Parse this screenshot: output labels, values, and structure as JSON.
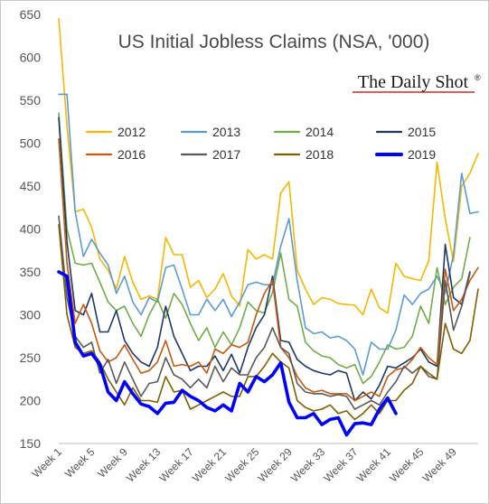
{
  "chart_data": {
    "type": "line",
    "title": "US Initial Jobless Claims (NSA, '000)",
    "source": "The Daily Shot",
    "source_mark": "®",
    "xlabel": "",
    "ylabel": "",
    "ylim": [
      150,
      650
    ],
    "yticks": [
      150,
      200,
      250,
      300,
      350,
      400,
      450,
      500,
      550,
      600,
      650
    ],
    "xlim": [
      1,
      52
    ],
    "xtick_labels": [
      "Week 1",
      "Week 5",
      "Week 9",
      "Week 13",
      "Week 17",
      "Week 21",
      "Week 25",
      "Week 29",
      "Week 33",
      "Week 37",
      "Week 41",
      "Week 45",
      "Week 49"
    ],
    "xtick_positions": [
      1,
      5,
      9,
      13,
      17,
      21,
      25,
      29,
      33,
      37,
      41,
      45,
      49
    ],
    "grid": false,
    "legend": "upper-center, 4 columns",
    "series": [
      {
        "name": "2012",
        "color": "#f5b800",
        "width": 1.6,
        "values": [
          645,
          520,
          420,
          423,
          402,
          365,
          352,
          330,
          368,
          338,
          318,
          322,
          318,
          390,
          370,
          370,
          332,
          340,
          320,
          330,
          348,
          322,
          310,
          376,
          365,
          370,
          365,
          442,
          455,
          352,
          330,
          312,
          320,
          318,
          313,
          312,
          311,
          300,
          330,
          308,
          302,
          360,
          345,
          342,
          340,
          363,
          478,
          412,
          362,
          450,
          465,
          488
        ]
      },
      {
        "name": "2013",
        "color": "#5b9bd5",
        "width": 1.6,
        "values": [
          557,
          557,
          420,
          368,
          388,
          372,
          358,
          325,
          345,
          315,
          300,
          320,
          315,
          355,
          358,
          330,
          300,
          300,
          318,
          305,
          318,
          298,
          315,
          335,
          338,
          335,
          335,
          380,
          412,
          340,
          285,
          278,
          280,
          273,
          275,
          270,
          260,
          230,
          268,
          260,
          260,
          282,
          323,
          312,
          325,
          330,
          345,
          325,
          370,
          465,
          418,
          420
        ]
      },
      {
        "name": "2014",
        "color": "#70ad47",
        "width": 1.6,
        "values": [
          535,
          400,
          360,
          358,
          360,
          338,
          315,
          305,
          310,
          290,
          275,
          300,
          318,
          296,
          325,
          312,
          290,
          270,
          285,
          262,
          280,
          265,
          285,
          315,
          305,
          302,
          326,
          372,
          318,
          310,
          268,
          258,
          252,
          250,
          242,
          238,
          242,
          220,
          228,
          245,
          265,
          260,
          262,
          275,
          310,
          290,
          355,
          312,
          332,
          342,
          390
        ]
      },
      {
        "name": "2015",
        "color": "#1f3864",
        "width": 1.6,
        "values": [
          530,
          385,
          305,
          300,
          325,
          280,
          280,
          305,
          270,
          255,
          245,
          240,
          262,
          310,
          275,
          255,
          235,
          240,
          240,
          252,
          235,
          254,
          232,
          262,
          285,
          300,
          345,
          270,
          268,
          248,
          240,
          235,
          232,
          230,
          235,
          232,
          200,
          210,
          202,
          218,
          240,
          238,
          244,
          250,
          260,
          245,
          240,
          382,
          320,
          312,
          350
        ]
      },
      {
        "name": "2016",
        "color": "#c55a11",
        "width": 1.6,
        "values": [
          505,
          360,
          290,
          312,
          290,
          258,
          245,
          250,
          265,
          248,
          232,
          235,
          245,
          270,
          240,
          242,
          240,
          245,
          232,
          260,
          255,
          265,
          262,
          268,
          300,
          325,
          340,
          262,
          250,
          228,
          215,
          210,
          212,
          208,
          208,
          208,
          200,
          205,
          210,
          205,
          228,
          236,
          238,
          248,
          262,
          250,
          242,
          353,
          305,
          318,
          340,
          355
        ]
      },
      {
        "name": "2017",
        "color": "#595959",
        "width": 1.6,
        "values": [
          415,
          320,
          275,
          262,
          268,
          232,
          248,
          220,
          245,
          225,
          205,
          220,
          222,
          250,
          230,
          225,
          215,
          225,
          215,
          240,
          222,
          238,
          230,
          230,
          250,
          262,
          285,
          262,
          255,
          220,
          210,
          208,
          208,
          205,
          207,
          205,
          190,
          195,
          200,
          195,
          210,
          222,
          240,
          232,
          240,
          228,
          225,
          340,
          282,
          310,
          348
        ]
      },
      {
        "name": "2018",
        "color": "#7f6000",
        "width": 1.6,
        "values": [
          405,
          300,
          262,
          255,
          258,
          245,
          225,
          210,
          195,
          215,
          200,
          200,
          198,
          228,
          210,
          212,
          190,
          195,
          200,
          205,
          210,
          205,
          205,
          228,
          228,
          240,
          255,
          245,
          238,
          200,
          192,
          188,
          190,
          195,
          185,
          188,
          178,
          185,
          195,
          185,
          200,
          200,
          212,
          220,
          240,
          232,
          225,
          290,
          260,
          255,
          270,
          330
        ]
      },
      {
        "name": "2019",
        "color": "#0000ff",
        "width": 3.6,
        "values": [
          350,
          345,
          268,
          252,
          255,
          242,
          210,
          200,
          222,
          208,
          196,
          193,
          185,
          197,
          198,
          212,
          205,
          200,
          192,
          188,
          195,
          188,
          220,
          210,
          228,
          222,
          230,
          244,
          198,
          180,
          180,
          185,
          172,
          178,
          180,
          160,
          173,
          174,
          172,
          190,
          203,
          185
        ]
      }
    ]
  },
  "legend_entries": [
    "2012",
    "2013",
    "2014",
    "2015",
    "2016",
    "2017",
    "2018",
    "2019"
  ]
}
